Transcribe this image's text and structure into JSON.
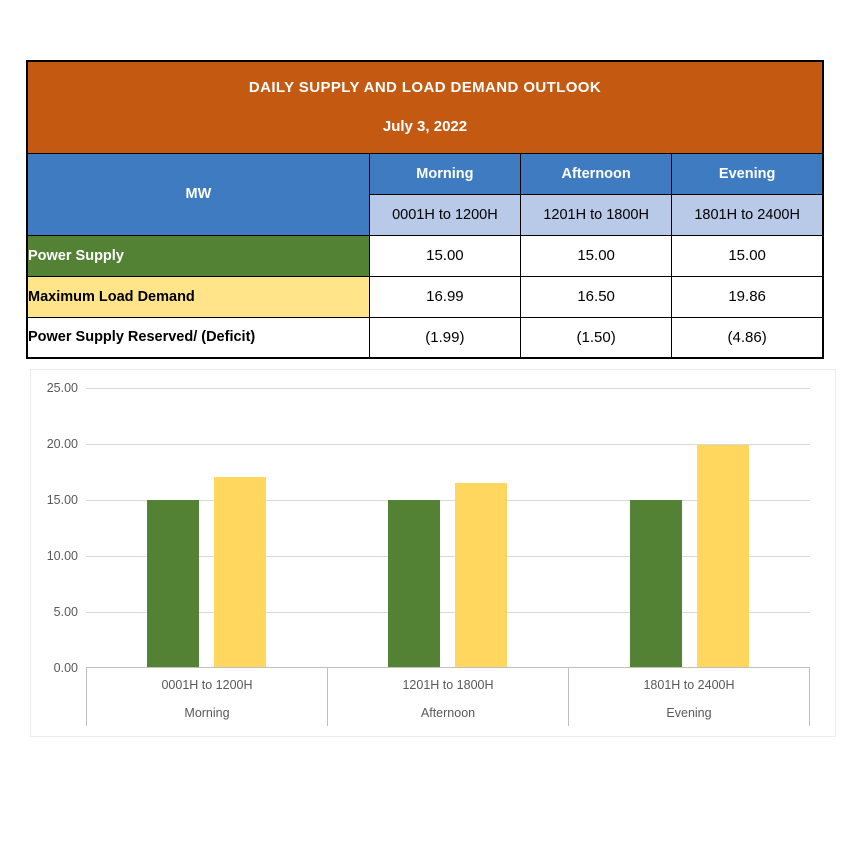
{
  "table": {
    "title": "DAILY SUPPLY AND LOAD DEMAND OUTLOOK",
    "date": "July 3, 2022",
    "unit_label": "MW",
    "columns": [
      {
        "period": "Morning",
        "hours": "0001H to 1200H"
      },
      {
        "period": "Afternoon",
        "hours": "1201H to 1800H"
      },
      {
        "period": "Evening",
        "hours": "1801H to 2400H"
      }
    ],
    "rows": [
      {
        "label": "Power Supply",
        "values": [
          "15.00",
          "15.00",
          "15.00"
        ]
      },
      {
        "label": "Maximum Load Demand",
        "values": [
          "16.99",
          "16.50",
          "19.86"
        ]
      },
      {
        "label": "Power Supply Reserved/ (Deficit)",
        "values": [
          "(1.99)",
          "(1.50)",
          "(4.86)"
        ]
      }
    ]
  },
  "chart_data": {
    "type": "bar",
    "title": "",
    "categories": [
      "Morning",
      "Afternoon",
      "Evening"
    ],
    "category_ranges": [
      "0001H to 1200H",
      "1201H to 1800H",
      "1801H to 2400H"
    ],
    "series": [
      {
        "name": "Power Supply",
        "color": "#548235",
        "values": [
          15.0,
          15.0,
          15.0
        ]
      },
      {
        "name": "Maximum Load Demand",
        "color": "#FFD75E",
        "values": [
          16.99,
          16.5,
          19.86
        ]
      }
    ],
    "ylim": [
      0,
      25
    ],
    "ytick_step": 5,
    "yticks": [
      "25.00",
      "20.00",
      "15.00",
      "10.00",
      "5.00",
      "0.00"
    ],
    "grid": true,
    "legend": "none"
  },
  "colors": {
    "header_orange": "#C45911",
    "header_blue": "#3E7BC1",
    "subheader_blue": "#B9C9E8",
    "supply_green": "#548235",
    "demand_yellow": "#FFE48A",
    "bar_green": "#548235",
    "bar_yellow": "#FFD75E"
  }
}
